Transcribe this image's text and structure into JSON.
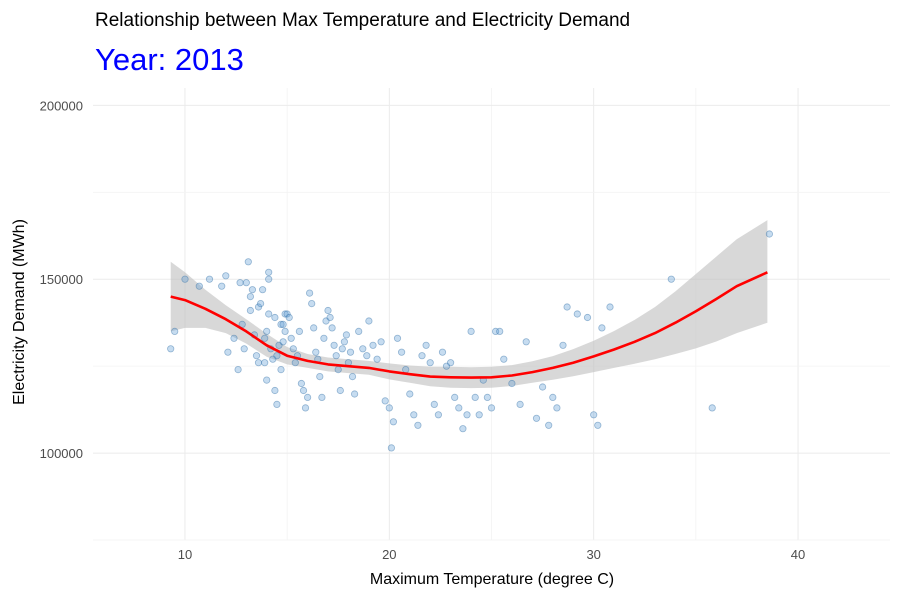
{
  "chart_data": {
    "type": "scatter",
    "title": "Relationship between Max Temperature and Electricity Demand",
    "subtitle": "Year: 2013",
    "xlabel": "Maximum Temperature (degree C)",
    "ylabel": "Electricity Demand (MWh)",
    "xlim": [
      5.5,
      44.5
    ],
    "ylim": [
      75000,
      205000
    ],
    "x_ticks": [
      10,
      20,
      30,
      40
    ],
    "y_ticks": [
      100000,
      150000,
      200000
    ],
    "grid": true,
    "colors": {
      "points": "#5b9bd5",
      "smooth_line": "#ff0000",
      "ribbon": "#bebebe",
      "subtitle": "#0000ff"
    },
    "points": [
      [
        9.3,
        130000
      ],
      [
        9.5,
        135000
      ],
      [
        10.0,
        150000
      ],
      [
        10.7,
        148000
      ],
      [
        11.2,
        150000
      ],
      [
        11.8,
        148000
      ],
      [
        12.0,
        151000
      ],
      [
        12.1,
        129000
      ],
      [
        12.4,
        133000
      ],
      [
        12.6,
        124000
      ],
      [
        12.7,
        149000
      ],
      [
        12.8,
        137000
      ],
      [
        12.9,
        130000
      ],
      [
        13.0,
        149000
      ],
      [
        13.1,
        155000
      ],
      [
        13.2,
        145000
      ],
      [
        13.2,
        141000
      ],
      [
        13.3,
        147000
      ],
      [
        13.4,
        134000
      ],
      [
        13.5,
        128000
      ],
      [
        13.6,
        126000
      ],
      [
        13.6,
        142000
      ],
      [
        13.7,
        143000
      ],
      [
        13.8,
        147000
      ],
      [
        13.9,
        133000
      ],
      [
        14.0,
        135000
      ],
      [
        14.1,
        140000
      ],
      [
        14.2,
        130000
      ],
      [
        14.3,
        127000
      ],
      [
        14.4,
        139000
      ],
      [
        14.5,
        128000
      ],
      [
        14.6,
        131000
      ],
      [
        14.7,
        137000
      ],
      [
        14.8,
        132000
      ],
      [
        14.9,
        135000
      ],
      [
        14.1,
        152000
      ],
      [
        14.1,
        150000
      ],
      [
        13.9,
        126000
      ],
      [
        14.0,
        121000
      ],
      [
        14.4,
        118000
      ],
      [
        14.5,
        114000
      ],
      [
        14.7,
        124000
      ],
      [
        14.8,
        137000
      ],
      [
        14.9,
        140000
      ],
      [
        15.0,
        140000
      ],
      [
        15.1,
        139000
      ],
      [
        15.2,
        133000
      ],
      [
        15.3,
        130000
      ],
      [
        15.4,
        126000
      ],
      [
        15.5,
        128000
      ],
      [
        15.6,
        135000
      ],
      [
        15.7,
        120000
      ],
      [
        15.8,
        118000
      ],
      [
        15.9,
        113000
      ],
      [
        16.0,
        116000
      ],
      [
        16.1,
        146000
      ],
      [
        16.2,
        143000
      ],
      [
        16.3,
        136000
      ],
      [
        16.4,
        129000
      ],
      [
        16.5,
        127000
      ],
      [
        16.6,
        122000
      ],
      [
        16.7,
        116000
      ],
      [
        16.8,
        133000
      ],
      [
        16.9,
        138000
      ],
      [
        17.0,
        141000
      ],
      [
        17.1,
        139000
      ],
      [
        17.2,
        136000
      ],
      [
        17.3,
        131000
      ],
      [
        17.4,
        128000
      ],
      [
        17.5,
        124000
      ],
      [
        17.6,
        118000
      ],
      [
        17.7,
        130000
      ],
      [
        17.8,
        132000
      ],
      [
        17.9,
        134000
      ],
      [
        18.0,
        126000
      ],
      [
        18.1,
        129000
      ],
      [
        18.2,
        122000
      ],
      [
        18.3,
        117000
      ],
      [
        18.5,
        135000
      ],
      [
        18.7,
        130000
      ],
      [
        18.9,
        128000
      ],
      [
        19.0,
        138000
      ],
      [
        19.2,
        131000
      ],
      [
        19.4,
        127000
      ],
      [
        19.6,
        132000
      ],
      [
        19.8,
        115000
      ],
      [
        20.0,
        113000
      ],
      [
        20.1,
        101500
      ],
      [
        20.2,
        109000
      ],
      [
        20.4,
        133000
      ],
      [
        20.6,
        129000
      ],
      [
        20.8,
        124000
      ],
      [
        21.0,
        117000
      ],
      [
        21.2,
        111000
      ],
      [
        21.4,
        108000
      ],
      [
        21.6,
        128000
      ],
      [
        21.8,
        131000
      ],
      [
        22.0,
        126000
      ],
      [
        22.2,
        114000
      ],
      [
        22.4,
        111000
      ],
      [
        22.6,
        129000
      ],
      [
        22.8,
        125000
      ],
      [
        23.0,
        126000
      ],
      [
        23.2,
        116000
      ],
      [
        23.4,
        113000
      ],
      [
        23.6,
        107000
      ],
      [
        23.8,
        111000
      ],
      [
        24.0,
        135000
      ],
      [
        24.2,
        116000
      ],
      [
        24.4,
        111000
      ],
      [
        24.6,
        121000
      ],
      [
        24.8,
        116000
      ],
      [
        25.0,
        113000
      ],
      [
        25.2,
        135000
      ],
      [
        25.4,
        135000
      ],
      [
        25.6,
        127000
      ],
      [
        26.0,
        120000
      ],
      [
        26.4,
        114000
      ],
      [
        26.7,
        132000
      ],
      [
        27.2,
        110000
      ],
      [
        27.5,
        119000
      ],
      [
        27.8,
        108000
      ],
      [
        28.0,
        116000
      ],
      [
        28.2,
        113000
      ],
      [
        28.5,
        131000
      ],
      [
        28.7,
        142000
      ],
      [
        29.2,
        140000
      ],
      [
        29.7,
        139000
      ],
      [
        30.0,
        111000
      ],
      [
        30.2,
        108000
      ],
      [
        30.4,
        136000
      ],
      [
        30.8,
        142000
      ],
      [
        33.8,
        150000
      ],
      [
        35.8,
        113000
      ],
      [
        38.6,
        163000
      ]
    ],
    "smooth": [
      [
        9.3,
        145000
      ],
      [
        10,
        144000
      ],
      [
        11,
        141500
      ],
      [
        12,
        138500
      ],
      [
        13,
        135000
      ],
      [
        14,
        131000
      ],
      [
        15,
        128000
      ],
      [
        16,
        126500
      ],
      [
        17,
        125500
      ],
      [
        18,
        125000
      ],
      [
        19,
        124500
      ],
      [
        20,
        123500
      ],
      [
        21,
        122700
      ],
      [
        22,
        122000
      ],
      [
        23,
        121800
      ],
      [
        24,
        121700
      ],
      [
        25,
        121800
      ],
      [
        26,
        122300
      ],
      [
        27,
        123300
      ],
      [
        28,
        124500
      ],
      [
        29,
        126000
      ],
      [
        30,
        127800
      ],
      [
        31,
        129800
      ],
      [
        32,
        132000
      ],
      [
        33,
        134500
      ],
      [
        34,
        137500
      ],
      [
        35,
        140800
      ],
      [
        36,
        144300
      ],
      [
        37,
        148000
      ],
      [
        38.5,
        152000
      ]
    ],
    "ribbon_upper": [
      [
        9.3,
        155000
      ],
      [
        10,
        152000
      ],
      [
        11,
        147000
      ],
      [
        12,
        142500
      ],
      [
        13,
        138500
      ],
      [
        14,
        134300
      ],
      [
        15,
        130500
      ],
      [
        16,
        128500
      ],
      [
        17,
        127500
      ],
      [
        18,
        127000
      ],
      [
        19,
        126500
      ],
      [
        20,
        125800
      ],
      [
        21,
        125200
      ],
      [
        22,
        124800
      ],
      [
        23,
        124800
      ],
      [
        24,
        124700
      ],
      [
        25,
        124800
      ],
      [
        26,
        125300
      ],
      [
        27,
        126400
      ],
      [
        28,
        127900
      ],
      [
        29,
        129900
      ],
      [
        30,
        132300
      ],
      [
        31,
        135100
      ],
      [
        32,
        138300
      ],
      [
        33,
        142000
      ],
      [
        34,
        146500
      ],
      [
        35,
        151500
      ],
      [
        36,
        156500
      ],
      [
        37,
        161500
      ],
      [
        38.5,
        167000
      ]
    ],
    "ribbon_lower": [
      [
        9.3,
        135000
      ],
      [
        10,
        136000
      ],
      [
        11,
        136000
      ],
      [
        12,
        134500
      ],
      [
        13,
        131500
      ],
      [
        14,
        127700
      ],
      [
        15,
        125500
      ],
      [
        16,
        124500
      ],
      [
        17,
        123500
      ],
      [
        18,
        123000
      ],
      [
        19,
        122500
      ],
      [
        20,
        121200
      ],
      [
        21,
        120200
      ],
      [
        22,
        119200
      ],
      [
        23,
        118800
      ],
      [
        24,
        118700
      ],
      [
        25,
        118800
      ],
      [
        26,
        119300
      ],
      [
        27,
        120200
      ],
      [
        28,
        121100
      ],
      [
        29,
        122100
      ],
      [
        30,
        123300
      ],
      [
        31,
        124500
      ],
      [
        32,
        125700
      ],
      [
        33,
        127000
      ],
      [
        34,
        128500
      ],
      [
        35,
        130100
      ],
      [
        36,
        132100
      ],
      [
        37,
        134500
      ],
      [
        38.5,
        137500
      ]
    ]
  }
}
